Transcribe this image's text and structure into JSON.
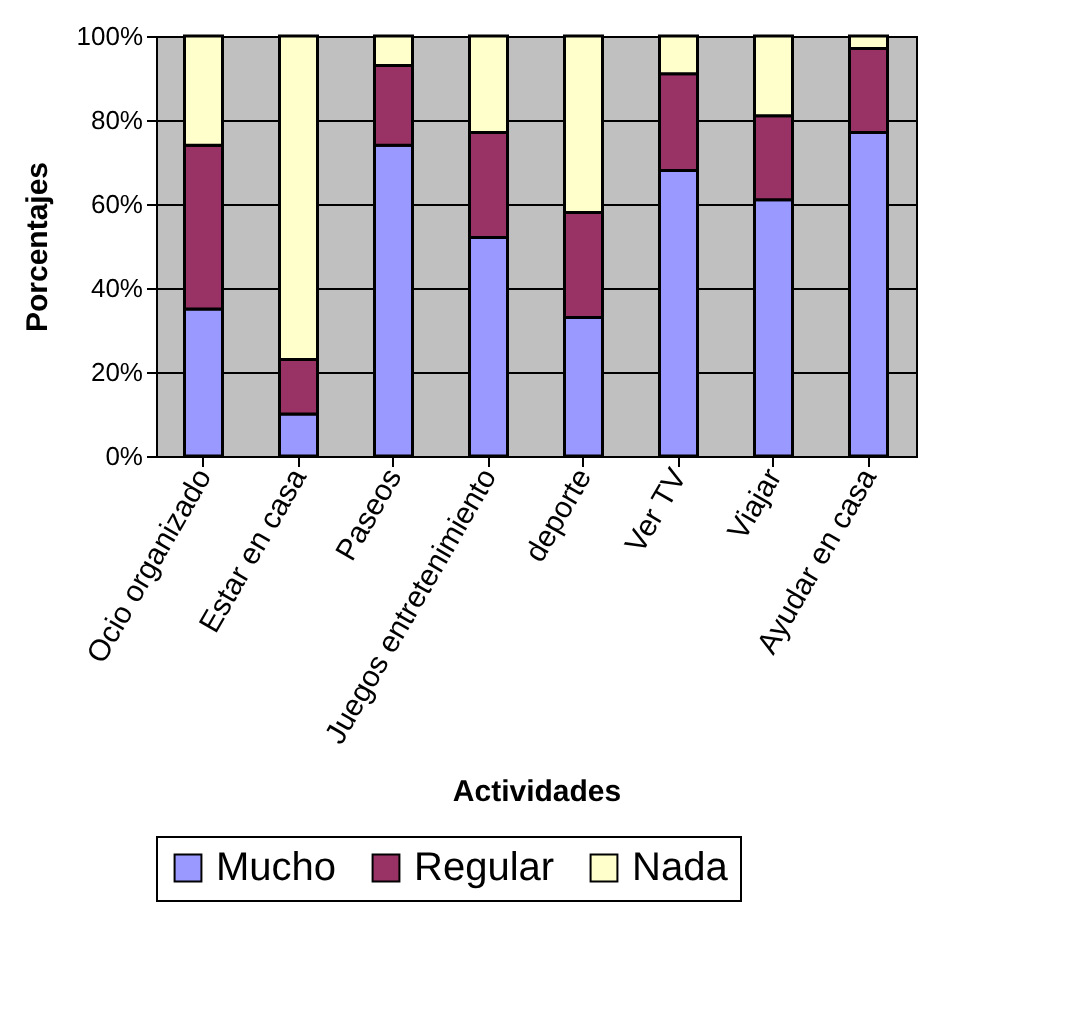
{
  "chart_data": {
    "type": "bar",
    "stacked": true,
    "xlabel": "Actividades",
    "ylabel": "Porcentajes",
    "categories": [
      "Ocio organizado",
      "Estar en casa",
      "Paseos",
      "Juegos entretenimiento",
      "deporte",
      "Ver TV",
      "Viajar",
      "Ayudar en casa"
    ],
    "series": [
      {
        "name": "Mucho",
        "color": "#9999ff",
        "values": [
          35,
          10,
          74,
          52,
          33,
          68,
          61,
          77
        ]
      },
      {
        "name": "Regular",
        "color": "#993366",
        "values": [
          39,
          13,
          19,
          25,
          25,
          23,
          20,
          20
        ]
      },
      {
        "name": "Nada",
        "color": "#ffffcc",
        "values": [
          26,
          77,
          7,
          23,
          42,
          9,
          19,
          3
        ]
      }
    ],
    "ylim": [
      0,
      100
    ],
    "yticks": [
      {
        "value": 0,
        "label": "0%"
      },
      {
        "value": 20,
        "label": "20%"
      },
      {
        "value": 40,
        "label": "40%"
      },
      {
        "value": 60,
        "label": "60%"
      },
      {
        "value": 80,
        "label": "80%"
      },
      {
        "value": 100,
        "label": "100%"
      }
    ],
    "grid": "y",
    "legend": "bottom"
  }
}
